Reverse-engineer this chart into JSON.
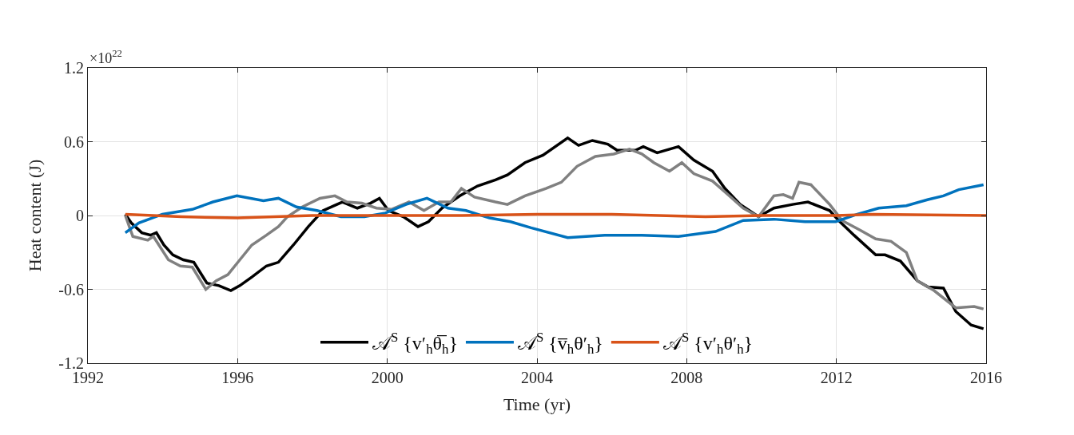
{
  "chart_data": {
    "type": "line",
    "xlabel": "Time (yr)",
    "ylabel": "Heat content (J)",
    "annotations": [
      "×10$^{22}$"
    ],
    "xlim": [
      1992,
      2016
    ],
    "xticks": [
      1992,
      1996,
      2000,
      2004,
      2008,
      2012,
      2016
    ],
    "ylim": [
      -1.2,
      1.2
    ],
    "yticks": [
      -1.2,
      -0.6,
      0,
      0.6,
      1.2
    ],
    "grid": true,
    "legend": "bottom",
    "line_style": "solid",
    "marker": "none",
    "series": [
      {
        "name": "𝒜$^{S}$ {v′$_{h}$θ̅$_{h}$}",
        "color": "#000000",
        "x": [
          1993.0,
          1993.16,
          1993.44,
          1993.68,
          1993.83,
          1994.03,
          1994.27,
          1994.55,
          1994.83,
          1995.18,
          1995.5,
          1995.82,
          1996.06,
          1996.38,
          1996.77,
          1997.09,
          1997.49,
          1997.89,
          1998.28,
          1998.8,
          1999.2,
          1999.55,
          1999.79,
          2000.03,
          2000.43,
          2000.82,
          2001.1,
          2001.46,
          2001.94,
          2002.41,
          2002.89,
          2003.21,
          2003.68,
          2004.16,
          2004.82,
          2005.11,
          2005.48,
          2005.89,
          2006.14,
          2006.63,
          2006.84,
          2007.21,
          2007.78,
          2008.19,
          2008.69,
          2009.02,
          2009.43,
          2009.92,
          2010.33,
          2010.83,
          2011.24,
          2011.82,
          2012.06,
          2012.47,
          2013.05,
          2013.3,
          2013.71,
          2014.16,
          2014.45,
          2014.86,
          2015.19,
          2015.6,
          2015.93
        ],
        "values": [
          0.01,
          -0.06,
          -0.14,
          -0.16,
          -0.14,
          -0.24,
          -0.32,
          -0.36,
          -0.38,
          -0.55,
          -0.57,
          -0.61,
          -0.57,
          -0.5,
          -0.41,
          -0.38,
          -0.24,
          -0.09,
          0.04,
          0.11,
          0.06,
          0.1,
          0.14,
          0.04,
          -0.01,
          -0.09,
          -0.05,
          0.06,
          0.16,
          0.24,
          0.29,
          0.33,
          0.43,
          0.49,
          0.63,
          0.57,
          0.61,
          0.58,
          0.53,
          0.53,
          0.56,
          0.51,
          0.56,
          0.45,
          0.36,
          0.22,
          0.09,
          -0.01,
          0.06,
          0.09,
          0.11,
          0.04,
          -0.04,
          -0.16,
          -0.32,
          -0.32,
          -0.37,
          -0.53,
          -0.58,
          -0.59,
          -0.78,
          -0.89,
          -0.92
        ]
      },
      {
        "color": "#808080",
        "x": [
          1993.0,
          1993.2,
          1993.6,
          1993.75,
          1994.15,
          1994.47,
          1994.79,
          1995.15,
          1995.43,
          1995.74,
          1996.06,
          1996.38,
          1996.77,
          1997.09,
          1997.33,
          1997.73,
          1998.2,
          1998.6,
          1998.92,
          1999.32,
          1999.71,
          2000.11,
          2000.58,
          2000.98,
          2001.38,
          2001.7,
          2001.98,
          2002.33,
          2002.89,
          2003.21,
          2003.68,
          2004.24,
          2004.65,
          2005.07,
          2005.56,
          2006.05,
          2006.47,
          2006.8,
          2007.12,
          2007.54,
          2007.87,
          2008.19,
          2008.69,
          2009.1,
          2009.51,
          2009.92,
          2010.33,
          2010.58,
          2010.83,
          2011.0,
          2011.32,
          2011.82,
          2012.15,
          2012.64,
          2013.05,
          2013.46,
          2013.87,
          2014.16,
          2014.61,
          2015.19,
          2015.68,
          2015.93
        ],
        "values": [
          0,
          -0.17,
          -0.2,
          -0.17,
          -0.36,
          -0.41,
          -0.42,
          -0.6,
          -0.53,
          -0.48,
          -0.36,
          -0.24,
          -0.16,
          -0.09,
          -0.01,
          0.07,
          0.14,
          0.16,
          0.11,
          0.1,
          0.06,
          0.05,
          0.11,
          0.04,
          0.11,
          0.11,
          0.22,
          0.15,
          0.11,
          0.09,
          0.16,
          0.22,
          0.27,
          0.4,
          0.48,
          0.5,
          0.54,
          0.5,
          0.43,
          0.36,
          0.43,
          0.34,
          0.28,
          0.17,
          0.06,
          -0.01,
          0.16,
          0.17,
          0.14,
          0.27,
          0.25,
          0.09,
          -0.04,
          -0.12,
          -0.19,
          -0.21,
          -0.3,
          -0.53,
          -0.61,
          -0.75,
          -0.74,
          -0.76
        ]
      },
      {
        "name": "𝒜$^{S}$ {v̅$_{h}$θ′$_{h}$}",
        "color": "#0072bd",
        "x": [
          1993.0,
          1993.36,
          1993.99,
          1994.79,
          1995.34,
          1995.98,
          1996.69,
          1997.09,
          1997.57,
          1998.12,
          1998.76,
          1999.39,
          1999.95,
          2000.5,
          2001.06,
          2001.62,
          2002.1,
          2002.73,
          2003.29,
          2003.84,
          2004.82,
          2005.81,
          2006.8,
          2007.78,
          2008.77,
          2009.51,
          2010.33,
          2011.16,
          2011.98,
          2012.56,
          2013.13,
          2013.87,
          2014.45,
          2014.86,
          2015.27,
          2015.93
        ],
        "values": [
          -0.14,
          -0.06,
          0.01,
          0.05,
          0.11,
          0.16,
          0.12,
          0.14,
          0.07,
          0.04,
          -0.01,
          -0.01,
          0.02,
          0.09,
          0.14,
          0.06,
          0.04,
          -0.02,
          -0.05,
          -0.1,
          -0.18,
          -0.16,
          -0.16,
          -0.17,
          -0.13,
          -0.04,
          -0.03,
          -0.05,
          -0.05,
          0.01,
          0.06,
          0.08,
          0.13,
          0.16,
          0.21,
          0.25
        ]
      },
      {
        "name": "𝒜$^{S}$ {v′$_{h}$θ′$_{h}$}",
        "color": "#d95319",
        "x": [
          1993.0,
          1994.5,
          1996.0,
          1998.0,
          2000.0,
          2002.0,
          2004.0,
          2006.0,
          2008.5,
          2010.0,
          2012.0,
          2013.0,
          2016.0
        ],
        "values": [
          0.01,
          -0.01,
          -0.02,
          0.0,
          0.0,
          0.0,
          0.01,
          0.01,
          -0.01,
          0.0,
          0.0,
          0.01,
          0.0
        ]
      }
    ]
  }
}
